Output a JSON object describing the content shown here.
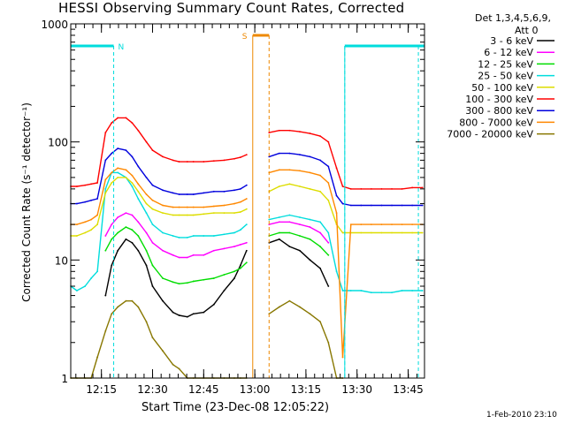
{
  "chart_data": {
    "type": "line",
    "title": "HESSI Observing Summary Count Rates, Corrected",
    "xlabel": "Start Time (23-Dec-08 12:05:22)",
    "ylabel": "Corrected Count Rate (s⁻¹ detector⁻¹)",
    "yscale": "log",
    "ylim": [
      1,
      1000
    ],
    "xlim_minutes": [
      12.1,
      13.83
    ],
    "yticks": [
      {
        "value": 1,
        "label": "1"
      },
      {
        "value": 10,
        "label": "10"
      },
      {
        "value": 100,
        "label": "100"
      },
      {
        "value": 1000,
        "label": "1000"
      }
    ],
    "xticks": [
      {
        "value": 12.25,
        "label": "12:15"
      },
      {
        "value": 12.5,
        "label": "12:30"
      },
      {
        "value": 12.75,
        "label": "12:45"
      },
      {
        "value": 13.0,
        "label": "13:00"
      },
      {
        "value": 13.25,
        "label": "13:15"
      },
      {
        "value": 13.5,
        "label": "13:30"
      },
      {
        "value": 13.75,
        "label": "13:45"
      }
    ],
    "legend_header": [
      "Det 1,3,4,5,6,9,",
      "Att 0"
    ],
    "legend_position": "right",
    "annotations": {
      "night_label": "N",
      "saa_label": "S",
      "footer_date": "1-Feb-2010 23:10"
    },
    "night_intervals": [
      [
        12.1,
        12.31
      ],
      [
        13.44,
        13.83
      ]
    ],
    "saa_interval": [
      12.99,
      13.07
    ],
    "series": [
      {
        "name": "3 - 6 keV",
        "color": "#000000",
        "x": [
          12.1,
          12.13,
          12.17,
          12.2,
          12.23,
          12.27,
          12.3,
          12.33,
          12.37,
          12.4,
          12.43,
          12.47,
          12.5,
          12.55,
          12.6,
          12.63,
          12.67,
          12.7,
          12.75,
          12.8,
          12.85,
          12.9,
          12.93,
          12.96,
          12.99,
          13.07,
          13.12,
          13.17,
          13.22,
          13.27,
          13.32,
          13.36,
          13.4,
          13.43
        ],
        "y": [
          null,
          null,
          null,
          null,
          null,
          5,
          9,
          12,
          15,
          14,
          12,
          9,
          6,
          4.5,
          3.6,
          3.4,
          3.3,
          3.5,
          3.6,
          4.2,
          5.5,
          7,
          9,
          12,
          null,
          14,
          15,
          13,
          12,
          10,
          8.5,
          6,
          null,
          null
        ]
      },
      {
        "name": "6 - 12 keV",
        "color": "#ff00ff",
        "x": [
          12.1,
          12.13,
          12.17,
          12.2,
          12.23,
          12.27,
          12.3,
          12.33,
          12.37,
          12.4,
          12.43,
          12.47,
          12.5,
          12.55,
          12.6,
          12.63,
          12.67,
          12.7,
          12.75,
          12.8,
          12.85,
          12.9,
          12.93,
          12.96,
          12.99,
          13.07,
          13.12,
          13.17,
          13.22,
          13.27,
          13.32,
          13.36,
          13.4,
          13.43
        ],
        "y": [
          null,
          null,
          null,
          null,
          null,
          16,
          20,
          23,
          25,
          24,
          21,
          17,
          14,
          12,
          11,
          10.5,
          10.5,
          11,
          11,
          12,
          12.5,
          13,
          13.5,
          14,
          null,
          20,
          21,
          21,
          20,
          19,
          17,
          14,
          null,
          null
        ]
      },
      {
        "name": "12 - 25 keV",
        "color": "#00dd00",
        "x": [
          12.1,
          12.13,
          12.17,
          12.2,
          12.23,
          12.27,
          12.3,
          12.33,
          12.37,
          12.4,
          12.43,
          12.47,
          12.5,
          12.55,
          12.6,
          12.63,
          12.67,
          12.7,
          12.75,
          12.8,
          12.85,
          12.9,
          12.93,
          12.96,
          12.99,
          13.07,
          13.12,
          13.17,
          13.22,
          13.27,
          13.32,
          13.36,
          13.4,
          13.43
        ],
        "y": [
          null,
          null,
          null,
          null,
          null,
          12,
          15,
          17,
          19,
          18,
          16,
          12,
          9,
          7,
          6.5,
          6.3,
          6.4,
          6.6,
          6.8,
          7,
          7.5,
          8,
          8.5,
          9.5,
          null,
          16,
          17,
          17,
          16,
          15,
          13,
          11,
          null,
          null
        ]
      },
      {
        "name": "25 - 50 keV",
        "color": "#00dddd",
        "x": [
          12.1,
          12.13,
          12.17,
          12.2,
          12.23,
          12.27,
          12.3,
          12.33,
          12.37,
          12.4,
          12.43,
          12.47,
          12.5,
          12.55,
          12.6,
          12.63,
          12.67,
          12.7,
          12.75,
          12.8,
          12.85,
          12.9,
          12.93,
          12.96,
          12.99,
          13.07,
          13.12,
          13.17,
          13.22,
          13.27,
          13.32,
          13.36,
          13.4,
          13.43,
          13.47,
          13.52,
          13.57,
          13.62,
          13.67,
          13.72,
          13.77,
          13.82
        ],
        "y": [
          6,
          5.5,
          6,
          7,
          8,
          40,
          55,
          55,
          50,
          42,
          33,
          25,
          20,
          17,
          16,
          15.5,
          15.5,
          16,
          16,
          16,
          16.5,
          17,
          18,
          20,
          null,
          22,
          23,
          24,
          23,
          22,
          21,
          17,
          8,
          5.5,
          5.5,
          5.5,
          5.3,
          5.3,
          5.3,
          5.5,
          5.5,
          5.5
        ]
      },
      {
        "name": "50 - 100 keV",
        "color": "#dddd00",
        "x": [
          12.1,
          12.13,
          12.17,
          12.2,
          12.23,
          12.27,
          12.3,
          12.33,
          12.37,
          12.4,
          12.43,
          12.47,
          12.5,
          12.55,
          12.6,
          12.63,
          12.67,
          12.7,
          12.75,
          12.8,
          12.85,
          12.9,
          12.93,
          12.96,
          12.99,
          13.07,
          13.12,
          13.17,
          13.22,
          13.27,
          13.32,
          13.36,
          13.4,
          13.43,
          13.47,
          13.52,
          13.57,
          13.62,
          13.67,
          13.72,
          13.77,
          13.82
        ],
        "y": [
          16,
          16,
          17,
          18,
          20,
          37,
          45,
          50,
          50,
          45,
          38,
          30,
          27,
          25,
          24,
          24,
          24,
          24,
          24.5,
          25,
          25,
          25,
          25.5,
          27,
          null,
          38,
          42,
          44,
          42,
          40,
          38,
          32,
          20,
          17,
          17,
          17,
          17,
          17,
          17,
          17,
          17,
          17
        ]
      },
      {
        "name": "100 - 300 keV",
        "color": "#ff0000",
        "x": [
          12.1,
          12.13,
          12.17,
          12.2,
          12.23,
          12.27,
          12.3,
          12.33,
          12.37,
          12.4,
          12.43,
          12.47,
          12.5,
          12.55,
          12.6,
          12.63,
          12.67,
          12.7,
          12.75,
          12.8,
          12.85,
          12.9,
          12.93,
          12.96,
          12.99,
          13.07,
          13.12,
          13.17,
          13.22,
          13.27,
          13.32,
          13.36,
          13.4,
          13.43,
          13.47,
          13.52,
          13.57,
          13.62,
          13.67,
          13.72,
          13.77,
          13.82
        ],
        "y": [
          42,
          42,
          43,
          44,
          45,
          120,
          145,
          160,
          160,
          145,
          125,
          100,
          85,
          75,
          70,
          68,
          68,
          68,
          68,
          69,
          70,
          72,
          74,
          78,
          null,
          120,
          125,
          125,
          122,
          118,
          112,
          100,
          60,
          42,
          40,
          40,
          40,
          40,
          40,
          40,
          41,
          41
        ]
      },
      {
        "name": "300 - 800 keV",
        "color": "#0000dd",
        "x": [
          12.1,
          12.13,
          12.17,
          12.2,
          12.23,
          12.27,
          12.3,
          12.33,
          12.37,
          12.4,
          12.43,
          12.47,
          12.5,
          12.55,
          12.6,
          12.63,
          12.67,
          12.7,
          12.75,
          12.8,
          12.85,
          12.9,
          12.93,
          12.96,
          12.99,
          13.07,
          13.12,
          13.17,
          13.22,
          13.27,
          13.32,
          13.36,
          13.4,
          13.43,
          13.47,
          13.52,
          13.57,
          13.62,
          13.67,
          13.72,
          13.77,
          13.82
        ],
        "y": [
          30,
          30,
          31,
          32,
          33,
          70,
          80,
          88,
          85,
          75,
          62,
          50,
          43,
          39,
          37,
          36,
          36,
          36,
          37,
          38,
          38,
          39,
          40,
          43,
          null,
          75,
          80,
          80,
          78,
          75,
          70,
          62,
          35,
          30,
          29,
          29,
          29,
          29,
          29,
          29,
          29,
          29
        ]
      },
      {
        "name": "800 - 7000 keV",
        "color": "#ff8800",
        "x": [
          12.1,
          12.13,
          12.17,
          12.2,
          12.23,
          12.27,
          12.3,
          12.33,
          12.37,
          12.4,
          12.43,
          12.47,
          12.5,
          12.55,
          12.6,
          12.63,
          12.67,
          12.7,
          12.75,
          12.8,
          12.85,
          12.9,
          12.93,
          12.96,
          12.99,
          13.07,
          13.12,
          13.17,
          13.22,
          13.27,
          13.32,
          13.36,
          13.4,
          13.43,
          13.47,
          13.52,
          13.57,
          13.62,
          13.67,
          13.72,
          13.77,
          13.82
        ],
        "y": [
          20,
          20,
          21,
          22,
          24,
          48,
          55,
          60,
          58,
          52,
          44,
          36,
          32,
          29,
          28,
          28,
          28,
          28,
          28,
          28.5,
          29,
          30,
          31,
          33,
          null,
          55,
          58,
          58,
          57,
          55,
          52,
          45,
          25,
          1.5,
          20,
          20,
          20,
          20,
          20,
          20,
          20,
          20
        ]
      },
      {
        "name": "7000 - 20000 keV",
        "color": "#887700",
        "x": [
          12.1,
          12.13,
          12.17,
          12.2,
          12.23,
          12.27,
          12.3,
          12.33,
          12.37,
          12.4,
          12.43,
          12.47,
          12.5,
          12.55,
          12.6,
          12.63,
          12.67,
          12.7,
          12.75,
          12.8,
          12.85,
          12.9,
          12.93,
          12.96,
          12.99,
          13.07,
          13.12,
          13.17,
          13.22,
          13.27,
          13.32,
          13.36,
          13.4,
          13.43
        ],
        "y": [
          1,
          1,
          1,
          1,
          1.5,
          2.5,
          3.5,
          4,
          4.5,
          4.5,
          4,
          3,
          2.2,
          1.7,
          1.3,
          1.2,
          1,
          1,
          1,
          1,
          1,
          1,
          1,
          1,
          null,
          3.5,
          4,
          4.5,
          4,
          3.5,
          3,
          2,
          1,
          1
        ]
      }
    ]
  }
}
